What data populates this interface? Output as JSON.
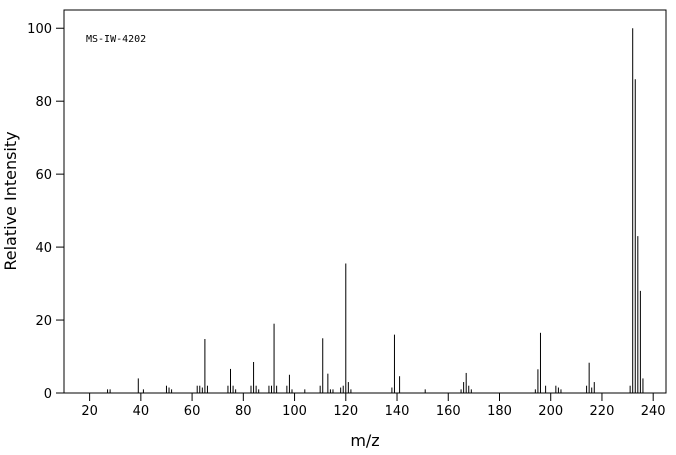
{
  "chart_data": {
    "type": "stem",
    "annotation": "MS-IW-4202",
    "xlabel": "m/z",
    "ylabel": "Relative Intensity",
    "x": [
      27,
      28,
      39,
      41,
      50,
      51,
      52,
      62,
      63,
      64,
      65,
      66,
      74,
      75,
      76,
      77,
      83,
      84,
      85,
      86,
      90,
      91,
      92,
      93,
      97,
      98,
      99,
      104,
      110,
      111,
      113,
      114,
      115,
      118,
      119,
      120,
      121,
      122,
      138,
      139,
      141,
      151,
      165,
      166,
      167,
      168,
      169,
      194,
      195,
      196,
      198,
      202,
      203,
      204,
      214,
      215,
      216,
      217,
      231,
      232,
      233,
      234,
      235,
      236
    ],
    "values": [
      1,
      1,
      4,
      1,
      2,
      1.5,
      1,
      2,
      2,
      1.5,
      14.8,
      2,
      2,
      6.6,
      2,
      1,
      2,
      8.5,
      2,
      1,
      2,
      2,
      19,
      2,
      2,
      5,
      1,
      1,
      2,
      15,
      5.3,
      1,
      1,
      1.5,
      2,
      35.5,
      3,
      1,
      1.5,
      16,
      4.6,
      1,
      1,
      3,
      5.5,
      2,
      1,
      1,
      6.5,
      16.5,
      2,
      2,
      1.5,
      1,
      2,
      8.3,
      1.5,
      3,
      2,
      100,
      86,
      43,
      28,
      4
    ],
    "color": "#000000",
    "xlim": [
      10,
      245
    ],
    "ylim": [
      0,
      105
    ],
    "xticks": [
      20,
      40,
      60,
      80,
      100,
      120,
      140,
      160,
      180,
      200,
      220,
      240
    ],
    "yticks": [
      0,
      20,
      40,
      60,
      80,
      100
    ]
  }
}
